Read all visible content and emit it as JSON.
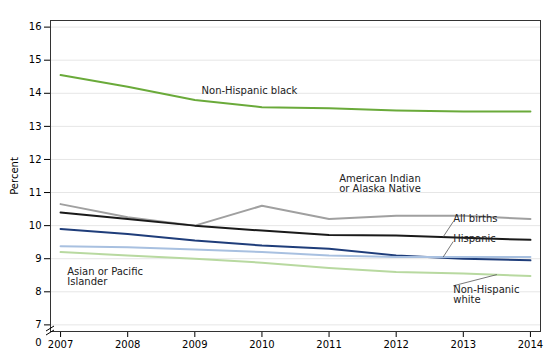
{
  "chart_data": {
    "type": "line",
    "x": [
      2007,
      2008,
      2009,
      2010,
      2011,
      2012,
      2013,
      2014
    ],
    "series": [
      {
        "name": "Non-Hispanic black",
        "color": "#6aaa3a",
        "values": [
          14.55,
          14.2,
          13.8,
          13.58,
          13.55,
          13.48,
          13.45,
          13.45
        ]
      },
      {
        "name": "American Indian or Alaska Native",
        "color": "#a0a0a0",
        "values": [
          10.65,
          10.25,
          10.0,
          10.6,
          10.2,
          10.3,
          10.3,
          10.2
        ]
      },
      {
        "name": "All births",
        "color": "#1a1a1a",
        "values": [
          10.4,
          10.2,
          10.0,
          9.85,
          9.72,
          9.7,
          9.63,
          9.57
        ]
      },
      {
        "name": "Hispanic",
        "color": "#1f3d7a",
        "values": [
          9.9,
          9.75,
          9.55,
          9.4,
          9.3,
          9.1,
          9.0,
          8.95
        ]
      },
      {
        "name": "Asian or Pacific Islander",
        "color": "#a8c0e0",
        "values": [
          9.38,
          9.35,
          9.28,
          9.2,
          9.1,
          9.05,
          9.05,
          9.05
        ]
      },
      {
        "name": "Non-Hispanic white",
        "color": "#b8d9a0",
        "values": [
          9.2,
          9.1,
          9.0,
          8.88,
          8.72,
          8.6,
          8.55,
          8.48
        ]
      }
    ],
    "ylabel": "Percent",
    "xlim": [
      2006.85,
      2014.15
    ],
    "xticks": [
      2007,
      2008,
      2009,
      2010,
      2011,
      2012,
      2013,
      2014
    ],
    "ylim": [
      6.8,
      16.2
    ],
    "yticks": [
      7,
      8,
      9,
      10,
      11,
      12,
      13,
      14,
      15,
      16
    ],
    "grid": true,
    "annotations": [
      {
        "text": "Non-Hispanic black",
        "x": 2009.1,
        "y": 14.08
      },
      {
        "text": "American Indian\nor Alaska Native",
        "x": 2011.15,
        "y": 11.02
      },
      {
        "text": "All births",
        "x": 2012.85,
        "y": 10.12,
        "arrow_to": [
          2012.7,
          9.66
        ]
      },
      {
        "text": "Hispanic",
        "x": 2012.85,
        "y": 9.52,
        "arrow_to": [
          2012.7,
          9.05
        ]
      },
      {
        "text": "Asian or Pacific\nIslander",
        "x": 2007.1,
        "y": 8.72
      },
      {
        "text": "Non-Hispanic\nwhite",
        "x": 2012.85,
        "y": 8.18,
        "arrow_to": [
          2013.5,
          8.52
        ]
      },
      {
        "text": "0"
      }
    ]
  }
}
